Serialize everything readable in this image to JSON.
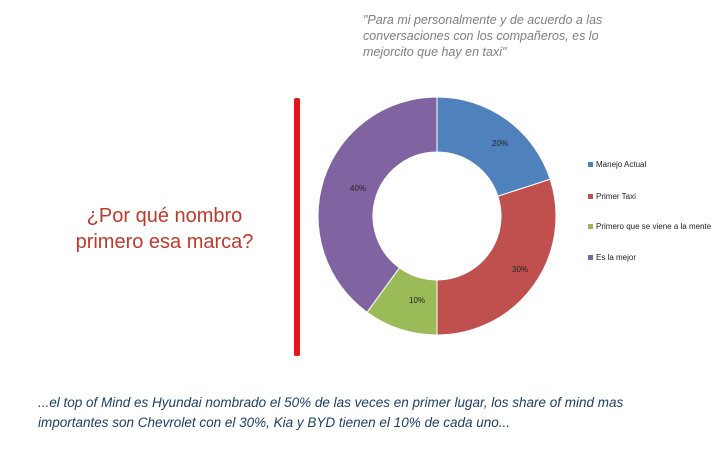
{
  "quote": "\"Para mi personalmente y de acuerdo a las\nconversaciones con los compañeros, es lo\nmejorcito que hay en taxi\"",
  "question": "¿Por qué nombro\nprimero esa marca?",
  "conclusion": "...el top of Mind es Hyundai nombrado el 50% de las veces en primer lugar, los share of mind mas importantes son Chevrolet con el 30%, Kia y BYD tienen el 10% de cada uno...",
  "colors": {
    "accent_red": "#e8131b",
    "question_text": "#c0392b",
    "conclusion_text": "#1f3f66"
  },
  "chart_data": {
    "type": "pie",
    "variant": "donut",
    "categories": [
      "Manejo Actual",
      "Primer Taxi",
      "Primero que se viene a la mente",
      "Es la mejor"
    ],
    "values": [
      20,
      30,
      10,
      40
    ],
    "data_labels": [
      "20%",
      "30%",
      "10%",
      "40%"
    ],
    "colors": [
      "#4f81bd",
      "#c0504d",
      "#9bbb59",
      "#8064a2"
    ],
    "legend_placement": "right"
  }
}
